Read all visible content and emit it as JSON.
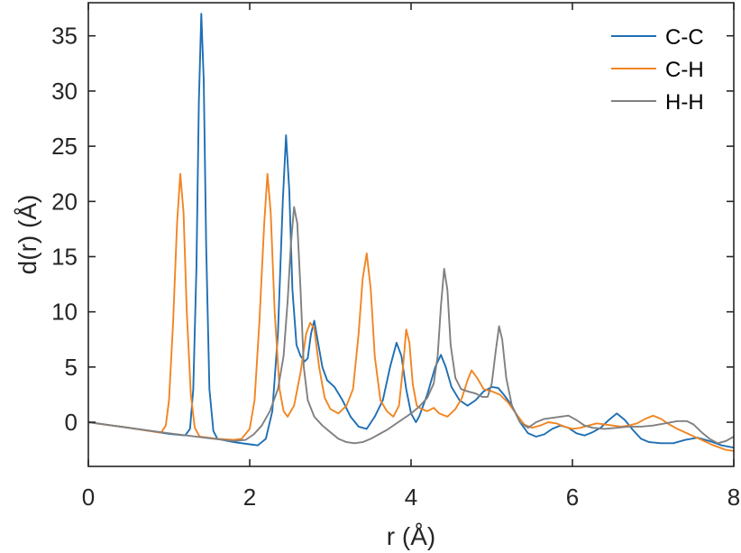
{
  "chart_data": {
    "type": "line",
    "title": "",
    "xlabel": "r (Å)",
    "ylabel": "d(r) (Å)",
    "xlim": [
      0,
      8
    ],
    "ylim": [
      -4,
      38
    ],
    "x_ticks": [
      0,
      2,
      4,
      6,
      8
    ],
    "x_tick_labels": [
      "0",
      "2",
      "4",
      "6",
      "8"
    ],
    "y_ticks": [
      0,
      5,
      10,
      15,
      20,
      25,
      30,
      35
    ],
    "y_tick_labels": [
      "0",
      "5",
      "10",
      "15",
      "20",
      "25",
      "30",
      "35"
    ],
    "grid": false,
    "legend_position": "top-right",
    "series": [
      {
        "name": "C-C",
        "color": "#1f6fb4",
        "points": [
          [
            0,
            0
          ],
          [
            0.5,
            -0.5
          ],
          [
            1.0,
            -1.05
          ],
          [
            1.2,
            -1.2
          ],
          [
            1.26,
            -0.6
          ],
          [
            1.3,
            3
          ],
          [
            1.34,
            14
          ],
          [
            1.37,
            29
          ],
          [
            1.4,
            37
          ],
          [
            1.43,
            31
          ],
          [
            1.46,
            16
          ],
          [
            1.5,
            3
          ],
          [
            1.55,
            -0.8
          ],
          [
            1.6,
            -1.5
          ],
          [
            1.8,
            -1.8
          ],
          [
            2.0,
            -2.0
          ],
          [
            2.1,
            -2.1
          ],
          [
            2.2,
            -1.5
          ],
          [
            2.28,
            1
          ],
          [
            2.35,
            8
          ],
          [
            2.41,
            20
          ],
          [
            2.45,
            26
          ],
          [
            2.49,
            21
          ],
          [
            2.53,
            12
          ],
          [
            2.58,
            7
          ],
          [
            2.63,
            6
          ],
          [
            2.68,
            5.5
          ],
          [
            2.72,
            5.8
          ],
          [
            2.76,
            8
          ],
          [
            2.8,
            9.2
          ],
          [
            2.84,
            7.5
          ],
          [
            2.9,
            5
          ],
          [
            2.96,
            3.8
          ],
          [
            3.05,
            3.2
          ],
          [
            3.15,
            2
          ],
          [
            3.25,
            0.5
          ],
          [
            3.35,
            -0.4
          ],
          [
            3.45,
            -0.6
          ],
          [
            3.55,
            0.5
          ],
          [
            3.65,
            2
          ],
          [
            3.74,
            5
          ],
          [
            3.82,
            7.2
          ],
          [
            3.88,
            6
          ],
          [
            3.94,
            3
          ],
          [
            4.0,
            0.8
          ],
          [
            4.06,
            0
          ],
          [
            4.1,
            0.5
          ],
          [
            4.2,
            2.5
          ],
          [
            4.3,
            5
          ],
          [
            4.37,
            6.1
          ],
          [
            4.43,
            5
          ],
          [
            4.5,
            3.2
          ],
          [
            4.6,
            2
          ],
          [
            4.7,
            1.5
          ],
          [
            4.8,
            2
          ],
          [
            4.9,
            2.8
          ],
          [
            5.0,
            3.2
          ],
          [
            5.08,
            3.1
          ],
          [
            5.15,
            2.5
          ],
          [
            5.25,
            1.5
          ],
          [
            5.35,
            0
          ],
          [
            5.45,
            -1
          ],
          [
            5.55,
            -1.3
          ],
          [
            5.65,
            -1.1
          ],
          [
            5.75,
            -0.6
          ],
          [
            5.85,
            -0.3
          ],
          [
            5.95,
            -0.5
          ],
          [
            6.05,
            -1
          ],
          [
            6.15,
            -1.2
          ],
          [
            6.25,
            -0.9
          ],
          [
            6.35,
            -0.5
          ],
          [
            6.45,
            0.2
          ],
          [
            6.55,
            0.8
          ],
          [
            6.65,
            0.2
          ],
          [
            6.75,
            -0.7
          ],
          [
            6.85,
            -1.5
          ],
          [
            6.95,
            -1.8
          ],
          [
            7.1,
            -1.9
          ],
          [
            7.25,
            -1.9
          ],
          [
            7.4,
            -1.6
          ],
          [
            7.55,
            -1.4
          ],
          [
            7.7,
            -1.7
          ],
          [
            7.85,
            -2.1
          ],
          [
            8.0,
            -2.3
          ]
        ]
      },
      {
        "name": "C-H",
        "color": "#f28522",
        "points": [
          [
            0,
            0
          ],
          [
            0.5,
            -0.5
          ],
          [
            0.9,
            -0.95
          ],
          [
            0.96,
            -0.3
          ],
          [
            1.0,
            2
          ],
          [
            1.05,
            9
          ],
          [
            1.1,
            18
          ],
          [
            1.14,
            22.5
          ],
          [
            1.18,
            19
          ],
          [
            1.22,
            10
          ],
          [
            1.27,
            2.5
          ],
          [
            1.32,
            -0.5
          ],
          [
            1.38,
            -1.3
          ],
          [
            1.6,
            -1.5
          ],
          [
            1.8,
            -1.6
          ],
          [
            1.9,
            -1.5
          ],
          [
            2.0,
            -0.6
          ],
          [
            2.06,
            2
          ],
          [
            2.12,
            9
          ],
          [
            2.18,
            18
          ],
          [
            2.22,
            22.5
          ],
          [
            2.26,
            19
          ],
          [
            2.31,
            10
          ],
          [
            2.37,
            3
          ],
          [
            2.42,
            1
          ],
          [
            2.47,
            0.5
          ],
          [
            2.55,
            1.5
          ],
          [
            2.63,
            4.5
          ],
          [
            2.7,
            8
          ],
          [
            2.75,
            9
          ],
          [
            2.8,
            8.5
          ],
          [
            2.86,
            5
          ],
          [
            2.93,
            2.2
          ],
          [
            3.0,
            1.2
          ],
          [
            3.1,
            0.8
          ],
          [
            3.2,
            1.5
          ],
          [
            3.28,
            3
          ],
          [
            3.35,
            8
          ],
          [
            3.4,
            13
          ],
          [
            3.45,
            15.3
          ],
          [
            3.5,
            12
          ],
          [
            3.55,
            6
          ],
          [
            3.62,
            2
          ],
          [
            3.7,
            1
          ],
          [
            3.78,
            0.5
          ],
          [
            3.85,
            1.5
          ],
          [
            3.9,
            5
          ],
          [
            3.94,
            8.4
          ],
          [
            3.98,
            7.2
          ],
          [
            4.02,
            3.5
          ],
          [
            4.07,
            1.5
          ],
          [
            4.13,
            1.2
          ],
          [
            4.2,
            1
          ],
          [
            4.28,
            1.3
          ],
          [
            4.35,
            0.8
          ],
          [
            4.45,
            0.5
          ],
          [
            4.55,
            1.2
          ],
          [
            4.63,
            2.2
          ],
          [
            4.7,
            3.8
          ],
          [
            4.75,
            4.7
          ],
          [
            4.82,
            4
          ],
          [
            4.9,
            3
          ],
          [
            5.0,
            2.8
          ],
          [
            5.1,
            2.5
          ],
          [
            5.2,
            1.8
          ],
          [
            5.3,
            0.8
          ],
          [
            5.4,
            -0.2
          ],
          [
            5.5,
            -0.5
          ],
          [
            5.6,
            -0.3
          ],
          [
            5.7,
            0
          ],
          [
            5.8,
            -0.1
          ],
          [
            5.9,
            -0.4
          ],
          [
            6.0,
            -0.6
          ],
          [
            6.1,
            -0.5
          ],
          [
            6.2,
            -0.3
          ],
          [
            6.3,
            -0.1
          ],
          [
            6.4,
            -0.2
          ],
          [
            6.5,
            -0.3
          ],
          [
            6.6,
            -0.4
          ],
          [
            6.7,
            -0.3
          ],
          [
            6.8,
            -0.1
          ],
          [
            6.9,
            0.3
          ],
          [
            7.0,
            0.6
          ],
          [
            7.1,
            0.3
          ],
          [
            7.2,
            -0.2
          ],
          [
            7.3,
            -0.6
          ],
          [
            7.45,
            -1.1
          ],
          [
            7.6,
            -1.6
          ],
          [
            7.75,
            -2.1
          ],
          [
            7.9,
            -2.5
          ],
          [
            8.0,
            -2.6
          ]
        ]
      },
      {
        "name": "H-H",
        "color": "#808080",
        "points": [
          [
            0,
            0
          ],
          [
            0.5,
            -0.5
          ],
          [
            1.0,
            -1.0
          ],
          [
            1.5,
            -1.45
          ],
          [
            1.8,
            -1.7
          ],
          [
            1.95,
            -1.6
          ],
          [
            2.05,
            -1.1
          ],
          [
            2.15,
            -0.3
          ],
          [
            2.25,
            1
          ],
          [
            2.35,
            3
          ],
          [
            2.42,
            6
          ],
          [
            2.47,
            11
          ],
          [
            2.51,
            16
          ],
          [
            2.55,
            19.5
          ],
          [
            2.59,
            18
          ],
          [
            2.63,
            12
          ],
          [
            2.67,
            5
          ],
          [
            2.72,
            2
          ],
          [
            2.8,
            0.5
          ],
          [
            2.9,
            -0.3
          ],
          [
            3.0,
            -0.9
          ],
          [
            3.1,
            -1.5
          ],
          [
            3.2,
            -1.8
          ],
          [
            3.3,
            -1.9
          ],
          [
            3.4,
            -1.8
          ],
          [
            3.5,
            -1.5
          ],
          [
            3.6,
            -1.1
          ],
          [
            3.7,
            -0.7
          ],
          [
            3.8,
            -0.2
          ],
          [
            3.9,
            0.3
          ],
          [
            4.0,
            0.8
          ],
          [
            4.1,
            1.4
          ],
          [
            4.2,
            2.2
          ],
          [
            4.28,
            3.5
          ],
          [
            4.33,
            6
          ],
          [
            4.37,
            10.5
          ],
          [
            4.41,
            13.9
          ],
          [
            4.45,
            12
          ],
          [
            4.49,
            7
          ],
          [
            4.55,
            4
          ],
          [
            4.62,
            3
          ],
          [
            4.7,
            2.8
          ],
          [
            4.8,
            2.6
          ],
          [
            4.88,
            2.3
          ],
          [
            4.95,
            2.3
          ],
          [
            5.0,
            3.5
          ],
          [
            5.05,
            6.5
          ],
          [
            5.09,
            8.7
          ],
          [
            5.13,
            7.5
          ],
          [
            5.18,
            4
          ],
          [
            5.25,
            1.5
          ],
          [
            5.35,
            0
          ],
          [
            5.45,
            -0.5
          ],
          [
            5.55,
            0
          ],
          [
            5.65,
            0.3
          ],
          [
            5.75,
            0.4
          ],
          [
            5.85,
            0.5
          ],
          [
            5.95,
            0.6
          ],
          [
            6.05,
            0.2
          ],
          [
            6.15,
            -0.3
          ],
          [
            6.25,
            -0.5
          ],
          [
            6.4,
            -0.6
          ],
          [
            6.55,
            -0.5
          ],
          [
            6.7,
            -0.4
          ],
          [
            6.85,
            -0.4
          ],
          [
            7.0,
            -0.3
          ],
          [
            7.15,
            -0.1
          ],
          [
            7.3,
            0.1
          ],
          [
            7.42,
            0.1
          ],
          [
            7.5,
            -0.2
          ],
          [
            7.6,
            -0.9
          ],
          [
            7.7,
            -1.5
          ],
          [
            7.8,
            -1.9
          ],
          [
            7.9,
            -1.7
          ],
          [
            8.0,
            -1.3
          ]
        ]
      }
    ]
  }
}
